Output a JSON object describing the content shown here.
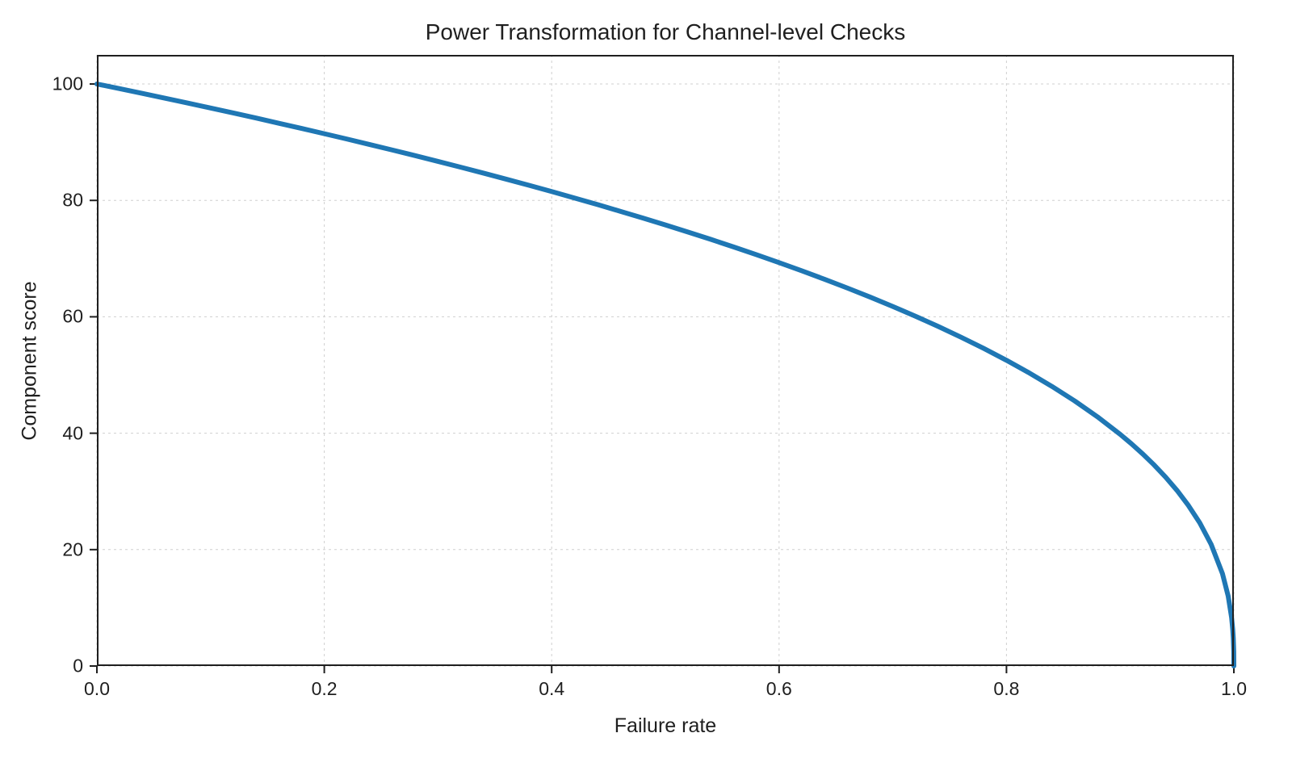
{
  "chart_data": {
    "type": "line",
    "title": "Power Transformation for Channel-level Checks",
    "xlabel": "Failure rate",
    "ylabel": "Component score",
    "xlim": [
      0,
      1
    ],
    "ylim": [
      0,
      105
    ],
    "x_ticks": [
      0.0,
      0.2,
      0.4,
      0.6,
      0.8,
      1.0
    ],
    "x_tick_labels": [
      "0.0",
      "0.2",
      "0.4",
      "0.6",
      "0.8",
      "1.0"
    ],
    "y_ticks": [
      0,
      20,
      40,
      60,
      80,
      100
    ],
    "y_tick_labels": [
      "0",
      "20",
      "40",
      "60",
      "80",
      "100"
    ],
    "grid": true,
    "legend": false,
    "line_color": "#1f77b4",
    "line_width": 6,
    "series": [
      {
        "name": "component-score-curve",
        "x": [
          0.0,
          0.02,
          0.04,
          0.06,
          0.08,
          0.1,
          0.12,
          0.14,
          0.16,
          0.18,
          0.2,
          0.22,
          0.24,
          0.26,
          0.28,
          0.3,
          0.32,
          0.34,
          0.36,
          0.38,
          0.4,
          0.42,
          0.44,
          0.46,
          0.48,
          0.5,
          0.52,
          0.54,
          0.56,
          0.58,
          0.6,
          0.62,
          0.64,
          0.66,
          0.68,
          0.7,
          0.72,
          0.74,
          0.76,
          0.78,
          0.8,
          0.82,
          0.84,
          0.86,
          0.88,
          0.9,
          0.91,
          0.92,
          0.93,
          0.94,
          0.95,
          0.96,
          0.97,
          0.98,
          0.99,
          0.995,
          0.998,
          0.999,
          0.9995,
          0.9999,
          1.0
        ],
        "y": [
          100.0,
          99.2,
          98.38,
          97.56,
          96.72,
          95.87,
          95.02,
          94.15,
          93.26,
          92.37,
          91.46,
          90.54,
          89.6,
          88.65,
          87.69,
          86.7,
          85.7,
          84.69,
          83.65,
          82.6,
          81.52,
          80.42,
          79.3,
          78.15,
          76.98,
          75.79,
          74.56,
          73.3,
          72.01,
          70.68,
          69.31,
          67.91,
          66.45,
          64.95,
          63.4,
          61.78,
          60.1,
          58.34,
          56.5,
          54.57,
          52.53,
          50.36,
          48.04,
          45.55,
          42.82,
          39.81,
          38.17,
          36.41,
          34.52,
          32.45,
          30.17,
          27.59,
          24.6,
          20.91,
          15.85,
          12.01,
          8.33,
          6.31,
          4.78,
          2.51,
          0.0
        ]
      }
    ]
  }
}
